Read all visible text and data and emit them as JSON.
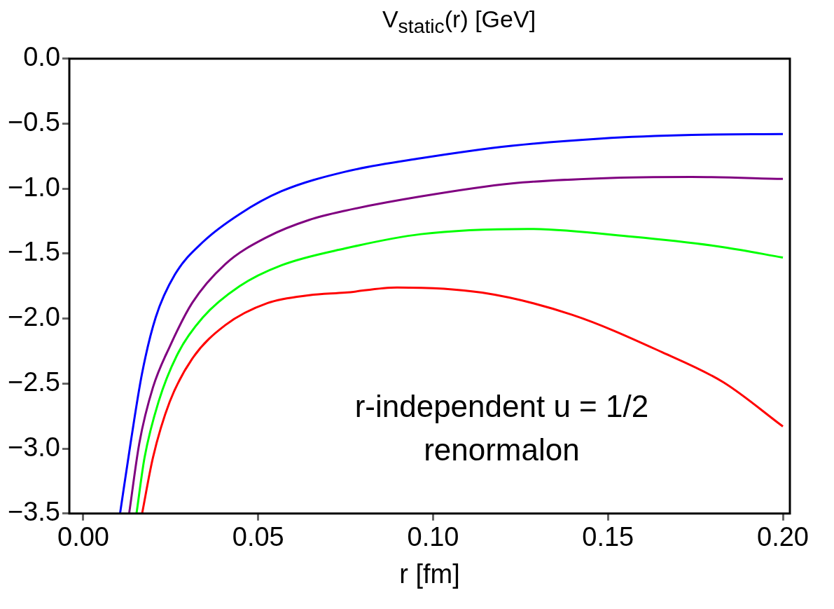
{
  "chart_data": {
    "type": "line",
    "title": "V$_{static}$(r) [GeV]",
    "xlabel": "r [fm]",
    "xlim": [
      -0.004,
      0.202
    ],
    "ylim": [
      -3.5,
      0
    ],
    "xticks": [
      {
        "value": 0,
        "label": "0.00"
      },
      {
        "value": 0.05,
        "label": "0.05"
      },
      {
        "value": 0.1,
        "label": "0.10"
      },
      {
        "value": 0.15,
        "label": "0.15"
      },
      {
        "value": 0.2,
        "label": "0.20"
      }
    ],
    "yticks": [
      {
        "value": -3.5,
        "label": "−3.5"
      },
      {
        "value": -3,
        "label": "−3.0"
      },
      {
        "value": -2.5,
        "label": "−2.5"
      },
      {
        "value": -2,
        "label": "−2.0"
      },
      {
        "value": -1.5,
        "label": "−1.5"
      },
      {
        "value": -1,
        "label": "−1.0"
      },
      {
        "value": -0.5,
        "label": "−0.5"
      },
      {
        "value": 0,
        "label": "0.0"
      }
    ],
    "grid": false,
    "legend": false,
    "marker": "none",
    "line_style": "solid",
    "annotations": [
      "r-independent u = 1/2",
      "renormalon"
    ],
    "series": [
      {
        "color": "#0000ff",
        "x": [
          0.0105,
          0.0135,
          0.0168,
          0.0207,
          0.0262,
          0.0342,
          0.0447,
          0.0566,
          0.0748,
          0.0965,
          0.1225,
          0.148,
          0.174,
          0.2
        ],
        "values": [
          -3.5,
          -2.96,
          -2.42,
          -1.99,
          -1.66,
          -1.41,
          -1.195,
          -1.02,
          -0.87,
          -0.766,
          -0.67,
          -0.614,
          -0.586,
          -0.58
        ]
      },
      {
        "color": "#800080",
        "x": [
          0.0131,
          0.016,
          0.0199,
          0.0248,
          0.0311,
          0.0406,
          0.0527,
          0.0646,
          0.0748,
          0.0965,
          0.1225,
          0.148,
          0.174,
          0.2
        ],
        "values": [
          -3.5,
          -2.96,
          -2.53,
          -2.21,
          -1.88,
          -1.58,
          -1.37,
          -1.24,
          -1.17,
          -1.06,
          -0.96,
          -0.92,
          -0.91,
          -0.925
        ]
      },
      {
        "color": "#00ff00",
        "x": [
          0.0152,
          0.0175,
          0.0215,
          0.027,
          0.0342,
          0.0447,
          0.0566,
          0.0748,
          0.0965,
          0.127,
          0.157,
          0.183,
          0.2
        ],
        "values": [
          -3.5,
          -3.07,
          -2.64,
          -2.27,
          -1.99,
          -1.75,
          -1.59,
          -1.46,
          -1.35,
          -1.31,
          -1.37,
          -1.45,
          -1.53
        ]
      },
      {
        "color": "#ff0000",
        "x": [
          0.0168,
          0.0199,
          0.0247,
          0.0311,
          0.0406,
          0.0527,
          0.0646,
          0.0748,
          0.0897,
          0.114,
          0.1397,
          0.1656,
          0.183,
          0.2
        ],
        "values": [
          -3.5,
          -3.07,
          -2.64,
          -2.31,
          -2.05,
          -1.88,
          -1.82,
          -1.8,
          -1.76,
          -1.8,
          -1.97,
          -2.26,
          -2.49,
          -2.83
        ]
      }
    ]
  }
}
